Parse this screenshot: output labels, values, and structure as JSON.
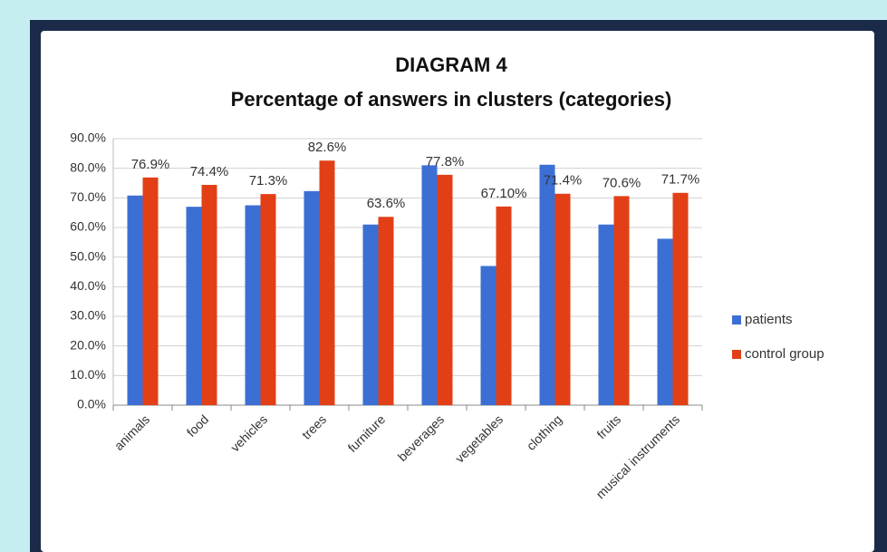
{
  "chart_data": {
    "type": "bar",
    "title": "DIAGRAM 4",
    "subtitle": "Percentage of answers in clusters (categories)",
    "categories": [
      "animals",
      "food",
      "vehicles",
      "trees",
      "furniture",
      "beverages",
      "vegetables",
      "clothing",
      "fruits",
      "musical instruments"
    ],
    "series": [
      {
        "name": "patients",
        "color": "#3b6fd4",
        "values": [
          70.8,
          67,
          67.5,
          72.3,
          61,
          81,
          47,
          81.2,
          61,
          56.2
        ]
      },
      {
        "name": "control group",
        "color": "#e23f17",
        "values": [
          76.9,
          74.4,
          71.3,
          82.6,
          63.6,
          77.8,
          67.1,
          71.4,
          70.6,
          71.7
        ],
        "value_labels": [
          "76.9%",
          "74.4%",
          "71.3%",
          "82.6%",
          "63.6%",
          "77.8%",
          "67.10%",
          "71.4%",
          "70.6%",
          "71.7%"
        ]
      }
    ],
    "ylim": [
      0,
      90
    ],
    "yticks": [
      {
        "value": 0,
        "label": "0.0%"
      },
      {
        "value": 10,
        "label": "10.0%"
      },
      {
        "value": 20,
        "label": "20.0%"
      },
      {
        "value": 30,
        "label": "30.0%"
      },
      {
        "value": 40,
        "label": "40.0%"
      },
      {
        "value": 50,
        "label": "50.0%"
      },
      {
        "value": 60,
        "label": "60.0%"
      },
      {
        "value": 70,
        "label": "70.0%"
      },
      {
        "value": 80,
        "label": "80.0%"
      },
      {
        "value": 90,
        "label": "90.0%"
      }
    ],
    "grid": true,
    "legend": "right"
  }
}
